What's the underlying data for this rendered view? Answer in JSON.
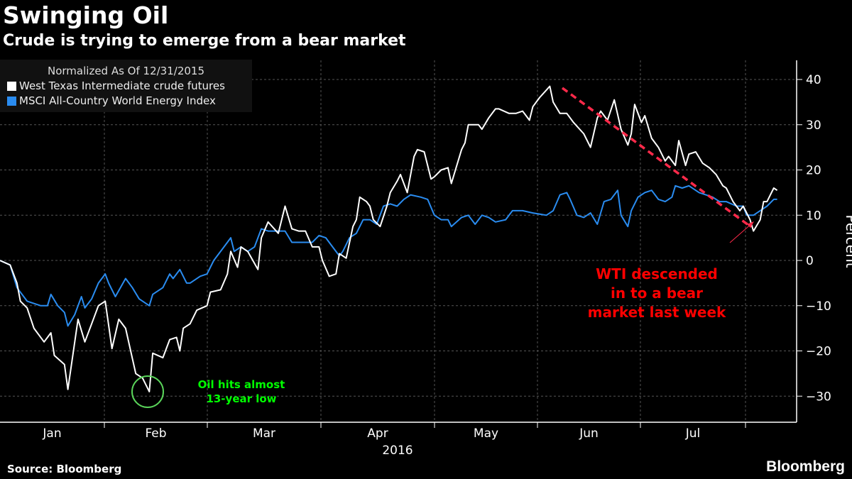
{
  "chart_data": {
    "type": "line",
    "title": "Swinging Oil",
    "subtitle": "Crude is trying to emerge from a bear market",
    "legend_title": "Normalized As Of 12/31/2015",
    "legend_placement": "top-left",
    "xlabel": "2016",
    "ylabel": "Percent",
    "ylim": [
      -35,
      45
    ],
    "yticks": [
      40,
      30,
      20,
      10,
      0,
      -10,
      -20,
      -30
    ],
    "ytick_labels": [
      "40",
      "30",
      "20",
      "10",
      "0",
      "-10",
      "-20",
      "-30"
    ],
    "x_unit": "day of 2016",
    "month_labels": [
      "Jan",
      "Feb",
      "Mar",
      "Apr",
      "May",
      "Jun",
      "Jul"
    ],
    "grid": true,
    "series": [
      {
        "name": "West Texas Intermediate crude futures",
        "color": "#ffffff",
        "x": [
          0,
          3,
          5,
          6,
          8,
          10,
          13,
          15,
          16,
          19,
          20,
          23,
          25,
          27,
          29,
          31,
          33,
          35,
          37,
          40,
          42,
          44,
          45,
          48,
          50,
          52,
          53,
          54,
          56,
          58,
          61,
          62,
          65,
          67,
          68,
          70,
          71,
          73,
          76,
          77,
          79,
          82,
          84,
          86,
          88,
          90,
          92,
          94,
          95,
          97,
          99,
          100,
          102,
          104,
          105,
          106,
          108,
          109,
          110,
          112,
          114,
          115,
          117,
          118,
          120,
          122,
          123,
          125,
          127,
          128,
          130,
          132,
          133,
          136,
          137,
          138,
          141,
          142,
          144,
          146,
          147,
          150,
          152,
          154,
          156,
          157,
          159,
          162,
          163,
          165,
          167,
          169,
          172,
          174,
          176,
          177,
          179,
          181,
          183,
          185,
          186,
          187,
          189,
          190,
          192,
          194,
          196,
          197,
          199,
          200,
          202,
          203,
          205,
          207,
          209,
          211,
          213,
          214,
          216,
          218,
          219,
          221,
          222,
          224,
          225,
          226,
          228,
          229
        ],
        "values": [
          0,
          -1,
          -5,
          -9,
          -10.5,
          -15,
          -18,
          -16,
          -21,
          -23,
          -28.5,
          -13,
          -18,
          -14,
          -10,
          -9,
          -19.5,
          -13,
          -15,
          -25,
          -26,
          -29,
          -20.5,
          -21.5,
          -17.5,
          -17,
          -20,
          -15,
          -14,
          -11,
          -10,
          -7,
          -6.5,
          -3,
          2,
          -1.5,
          3,
          2,
          -2,
          5,
          8.5,
          6,
          12,
          7,
          6.5,
          6.5,
          3,
          3,
          0,
          -3.5,
          -3,
          1.5,
          0.5,
          7.5,
          9,
          14,
          13,
          12,
          9,
          7.5,
          12,
          15,
          17.5,
          19,
          15,
          23,
          24.5,
          24,
          18,
          18.5,
          20,
          20.5,
          17,
          24.5,
          26,
          30,
          30,
          29,
          31.5,
          33.5,
          33.5,
          32.5,
          32.5,
          33,
          31,
          34,
          36,
          38.5,
          35,
          32.5,
          32.5,
          30.5,
          28,
          25,
          31.5,
          33,
          31,
          35.5,
          29,
          25.5,
          28,
          34.5,
          30.5,
          32,
          27,
          25,
          22,
          23,
          21,
          26.5,
          21,
          23.5,
          24,
          21.5,
          20.5,
          19,
          16.5,
          16,
          13,
          11,
          12,
          9,
          6.5,
          9,
          13,
          13,
          16,
          15.5
        ]
      },
      {
        "name": "MSCI All-Country World Energy Index",
        "color": "#2a8cf0",
        "x": [
          0,
          3,
          5,
          8,
          12,
          14,
          15,
          17,
          19,
          20,
          22,
          24,
          25,
          27,
          29,
          31,
          32,
          34,
          37,
          39,
          41,
          44,
          45,
          48,
          50,
          51,
          53,
          55,
          56,
          59,
          61,
          63,
          66,
          68,
          69,
          71,
          73,
          75,
          77,
          79,
          84,
          86,
          90,
          92,
          94,
          96,
          98,
          100,
          101,
          103,
          105,
          107,
          109,
          111,
          113,
          115,
          117,
          119,
          121,
          124,
          126,
          128,
          130,
          132,
          133,
          136,
          138,
          140,
          142,
          144,
          146,
          149,
          151,
          154,
          157,
          161,
          163,
          165,
          167,
          168,
          170,
          172,
          174,
          176,
          178,
          180,
          182,
          183,
          185,
          186,
          188,
          190,
          192,
          194,
          196,
          198,
          199,
          201,
          203,
          206,
          208,
          210,
          212,
          214,
          217,
          219,
          220,
          222,
          224,
          226,
          228,
          229
        ],
        "values": [
          0,
          -1,
          -6,
          -9,
          -10,
          -10,
          -7.5,
          -10,
          -11.5,
          -14.5,
          -12,
          -8,
          -10.5,
          -8.5,
          -5,
          -3,
          -5,
          -8,
          -4,
          -6,
          -8.5,
          -10,
          -7.5,
          -6,
          -3,
          -4,
          -2,
          -5,
          -5,
          -3.5,
          -3,
          0,
          3,
          5,
          2,
          3,
          2,
          3,
          7,
          6.5,
          6.5,
          4,
          4,
          4,
          5.5,
          5,
          3,
          1,
          2,
          5,
          6,
          9,
          9,
          8,
          12,
          12.5,
          12,
          13.5,
          14.5,
          14,
          13.5,
          10,
          9,
          9,
          7.5,
          9.5,
          10,
          8,
          10,
          9.5,
          8.5,
          9,
          11,
          11,
          10.5,
          10,
          11,
          14.5,
          15,
          13.5,
          10,
          9.5,
          10.5,
          8,
          13,
          13.5,
          15.5,
          10,
          7.5,
          11,
          14,
          15,
          15.5,
          13.5,
          13,
          14,
          16.5,
          16,
          16.5,
          15,
          14.5,
          14,
          13,
          13,
          12,
          12,
          10,
          10,
          11,
          12,
          13.5,
          13.5
        ]
      }
    ],
    "annotations": [
      {
        "text_lines": [
          "Oil hits almost",
          "13-year low"
        ],
        "color": "#00ff00"
      },
      {
        "text_lines": [
          "WTI descended",
          "in to a bear",
          "market last week"
        ],
        "color": "#ff0000"
      }
    ]
  },
  "footer": {
    "source": "Source: Bloomberg",
    "logo": "Bloomberg"
  }
}
